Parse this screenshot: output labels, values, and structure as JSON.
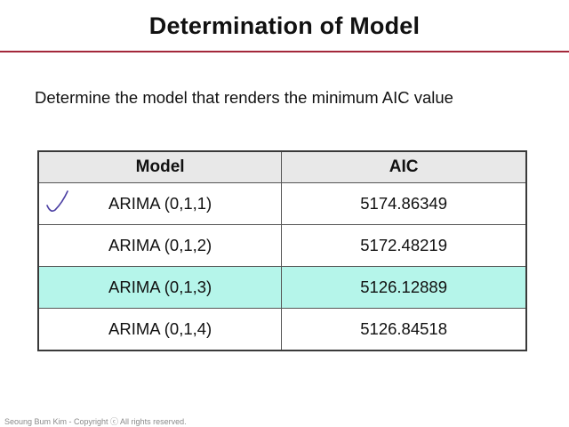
{
  "slide": {
    "title": "Determination of Model",
    "subtitle": "Determine the model that renders the minimum AIC value"
  },
  "table": {
    "headers": {
      "model": "Model",
      "aic": "AIC"
    },
    "rows": [
      {
        "model": "ARIMA (0,1,1)",
        "aic": "5174.86349",
        "checked": true,
        "highlighted": false
      },
      {
        "model": "ARIMA (0,1,2)",
        "aic": "5172.48219",
        "checked": false,
        "highlighted": false
      },
      {
        "model": "ARIMA (0,1,3)",
        "aic": "5126.12889",
        "checked": false,
        "highlighted": true
      },
      {
        "model": "ARIMA (0,1,4)",
        "aic": "5126.84518",
        "checked": false,
        "highlighted": false
      }
    ]
  },
  "footer": {
    "text": "Seoung Bum Kim - Copyright ⓒ All rights reserved."
  },
  "colors": {
    "title_rule": "#a3283a",
    "header_background": "#e8e8e8",
    "highlight_row": "#b5f5ea",
    "check_mark": "#4b3fa3"
  }
}
